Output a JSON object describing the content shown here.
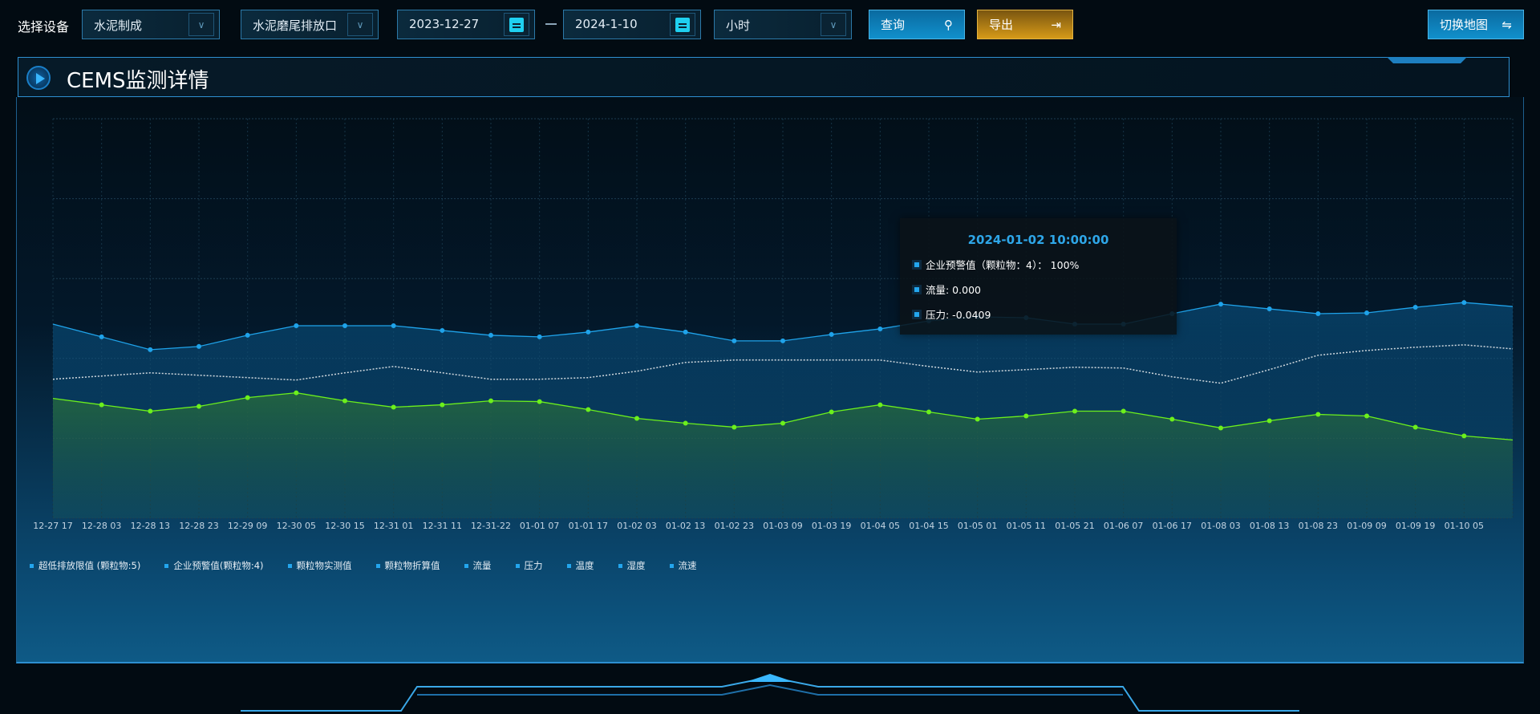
{
  "toolbar": {
    "device_label": "选择设备",
    "company": "水泥制成",
    "outlet": "水泥磨尾排放口",
    "start_date": "2023-12-27",
    "end_date": "2024-1-10",
    "granularity": "小时",
    "query": "查询",
    "export": "导出",
    "switch_map": "切换地图"
  },
  "panel": {
    "title": "CEMS监测详情"
  },
  "tooltip": {
    "time": "2024-01-02 10:00:00",
    "rows": [
      "企业预警值（颗粒物：4）：   100%",
      "流量: 0.000",
      "压力: -0.0409"
    ]
  },
  "legend": [
    "超低排放限值 (颗粒物:5)",
    "企业预警值(颗粒物:4)",
    "颗粒物实测值",
    "颗粒物折算值",
    "流量",
    "压力",
    "温度",
    "湿度",
    "流速"
  ],
  "colors": {
    "blue": "#1fa3ea",
    "green": "#6cf01c",
    "white": "#d0d8de",
    "accent": "#2e8fd0",
    "export": "#d69a18"
  },
  "chart_data": {
    "type": "line",
    "categories": [
      "12-27 17",
      "12-28 03",
      "12-28 13",
      "12-28 23",
      "12-29 09",
      "12-30 05",
      "12-30 15",
      "12-31 01",
      "12-31 11",
      "12-31-22",
      "01-01 07",
      "01-01 17",
      "01-02 03",
      "01-02 13",
      "01-02 23",
      "01-03 09",
      "01-03 19",
      "01-04 05",
      "01-04 15",
      "01-05 01",
      "01-05 11",
      "01-05 21",
      "01-06 07",
      "01-06 17",
      "01-08 03",
      "01-08 13",
      "01-08 23",
      "01-09 09",
      "01-09 19",
      "01-10 05"
    ],
    "ylim": [
      0,
      5
    ],
    "grid": true,
    "legend_position": "bottom-left",
    "series": [
      {
        "color": "#1fa3ea",
        "area": true,
        "values": [
          2.43,
          2.27,
          2.11,
          2.15,
          2.29,
          2.41,
          2.41,
          2.41,
          2.35,
          2.29,
          2.27,
          2.33,
          2.41,
          2.33,
          2.22,
          2.22,
          2.3,
          2.37,
          2.47,
          2.52,
          2.51,
          2.43,
          2.43,
          2.56,
          2.68,
          2.62,
          2.56,
          2.57,
          2.64,
          2.7
        ]
      },
      {
        "color": "#d0d8de",
        "dashed": true,
        "values": [
          1.74,
          1.78,
          1.82,
          1.79,
          1.76,
          1.73,
          1.82,
          1.9,
          1.82,
          1.74,
          1.74,
          1.76,
          1.84,
          1.95,
          1.98,
          1.98,
          1.98,
          1.98,
          1.9,
          1.83,
          1.86,
          1.89,
          1.88,
          1.77,
          1.69,
          1.86,
          2.04,
          2.1,
          2.14,
          2.17
        ]
      },
      {
        "color": "#6cf01c",
        "area": true,
        "values": [
          1.5,
          1.42,
          1.34,
          1.4,
          1.51,
          1.57,
          1.47,
          1.39,
          1.42,
          1.47,
          1.46,
          1.36,
          1.25,
          1.19,
          1.14,
          1.19,
          1.33,
          1.42,
          1.33,
          1.24,
          1.28,
          1.34,
          1.34,
          1.24,
          1.13,
          1.22,
          1.3,
          1.28,
          1.14,
          1.03
        ]
      }
    ]
  }
}
